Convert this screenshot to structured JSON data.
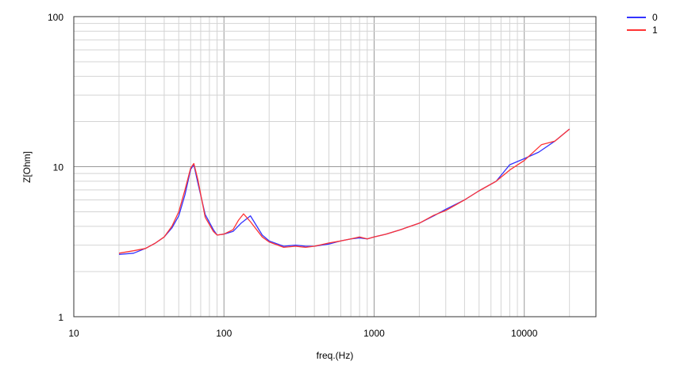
{
  "chart_data": {
    "type": "line",
    "title": "",
    "xlabel": "freq.(Hz)",
    "ylabel": "Z[Ohm]",
    "x_scale": "log",
    "y_scale": "log",
    "xlim": [
      10,
      30000
    ],
    "ylim": [
      1,
      100
    ],
    "x_ticks": [
      "10",
      "100",
      "1000",
      "10000"
    ],
    "y_ticks": [
      "1",
      "10",
      "100"
    ],
    "grid": true,
    "legend_position": "top-right",
    "series": [
      {
        "name": "0",
        "color": "#3333ff",
        "points": [
          [
            20,
            2.6
          ],
          [
            25,
            2.65
          ],
          [
            30,
            2.85
          ],
          [
            35,
            3.1
          ],
          [
            40,
            3.4
          ],
          [
            45,
            3.9
          ],
          [
            50,
            4.7
          ],
          [
            55,
            6.5
          ],
          [
            60,
            9.6
          ],
          [
            63,
            10.3
          ],
          [
            67,
            7.8
          ],
          [
            75,
            4.8
          ],
          [
            85,
            3.8
          ],
          [
            90,
            3.5
          ],
          [
            100,
            3.55
          ],
          [
            115,
            3.7
          ],
          [
            130,
            4.2
          ],
          [
            150,
            4.7
          ],
          [
            180,
            3.5
          ],
          [
            200,
            3.2
          ],
          [
            250,
            2.95
          ],
          [
            300,
            3.0
          ],
          [
            350,
            2.95
          ],
          [
            400,
            2.95
          ],
          [
            500,
            3.05
          ],
          [
            600,
            3.2
          ],
          [
            700,
            3.3
          ],
          [
            800,
            3.35
          ],
          [
            900,
            3.3
          ],
          [
            1000,
            3.4
          ],
          [
            1200,
            3.55
          ],
          [
            1500,
            3.8
          ],
          [
            2000,
            4.2
          ],
          [
            2500,
            4.7
          ],
          [
            3000,
            5.2
          ],
          [
            4000,
            6.0
          ],
          [
            5000,
            6.9
          ],
          [
            6500,
            8.0
          ],
          [
            8000,
            10.3
          ],
          [
            10000,
            11.3
          ],
          [
            12500,
            12.5
          ],
          [
            16000,
            14.8
          ],
          [
            20000,
            17.8
          ]
        ]
      },
      {
        "name": "1",
        "color": "#ff3333",
        "points": [
          [
            20,
            2.65
          ],
          [
            25,
            2.75
          ],
          [
            30,
            2.85
          ],
          [
            35,
            3.1
          ],
          [
            40,
            3.4
          ],
          [
            45,
            4.0
          ],
          [
            50,
            5.0
          ],
          [
            55,
            7.0
          ],
          [
            60,
            9.8
          ],
          [
            63,
            10.5
          ],
          [
            67,
            8.2
          ],
          [
            75,
            4.6
          ],
          [
            85,
            3.7
          ],
          [
            90,
            3.5
          ],
          [
            100,
            3.55
          ],
          [
            115,
            3.8
          ],
          [
            125,
            4.4
          ],
          [
            135,
            4.85
          ],
          [
            150,
            4.3
          ],
          [
            180,
            3.4
          ],
          [
            200,
            3.15
          ],
          [
            250,
            2.9
          ],
          [
            300,
            2.95
          ],
          [
            350,
            2.9
          ],
          [
            400,
            2.95
          ],
          [
            500,
            3.1
          ],
          [
            600,
            3.2
          ],
          [
            700,
            3.3
          ],
          [
            800,
            3.4
          ],
          [
            900,
            3.3
          ],
          [
            1000,
            3.4
          ],
          [
            1200,
            3.55
          ],
          [
            1500,
            3.8
          ],
          [
            2000,
            4.2
          ],
          [
            2500,
            4.75
          ],
          [
            3000,
            5.1
          ],
          [
            4000,
            6.0
          ],
          [
            5000,
            6.9
          ],
          [
            6500,
            8.0
          ],
          [
            8000,
            9.5
          ],
          [
            10000,
            11.0
          ],
          [
            13000,
            14.0
          ],
          [
            16000,
            14.8
          ],
          [
            20000,
            17.8
          ]
        ]
      }
    ]
  }
}
